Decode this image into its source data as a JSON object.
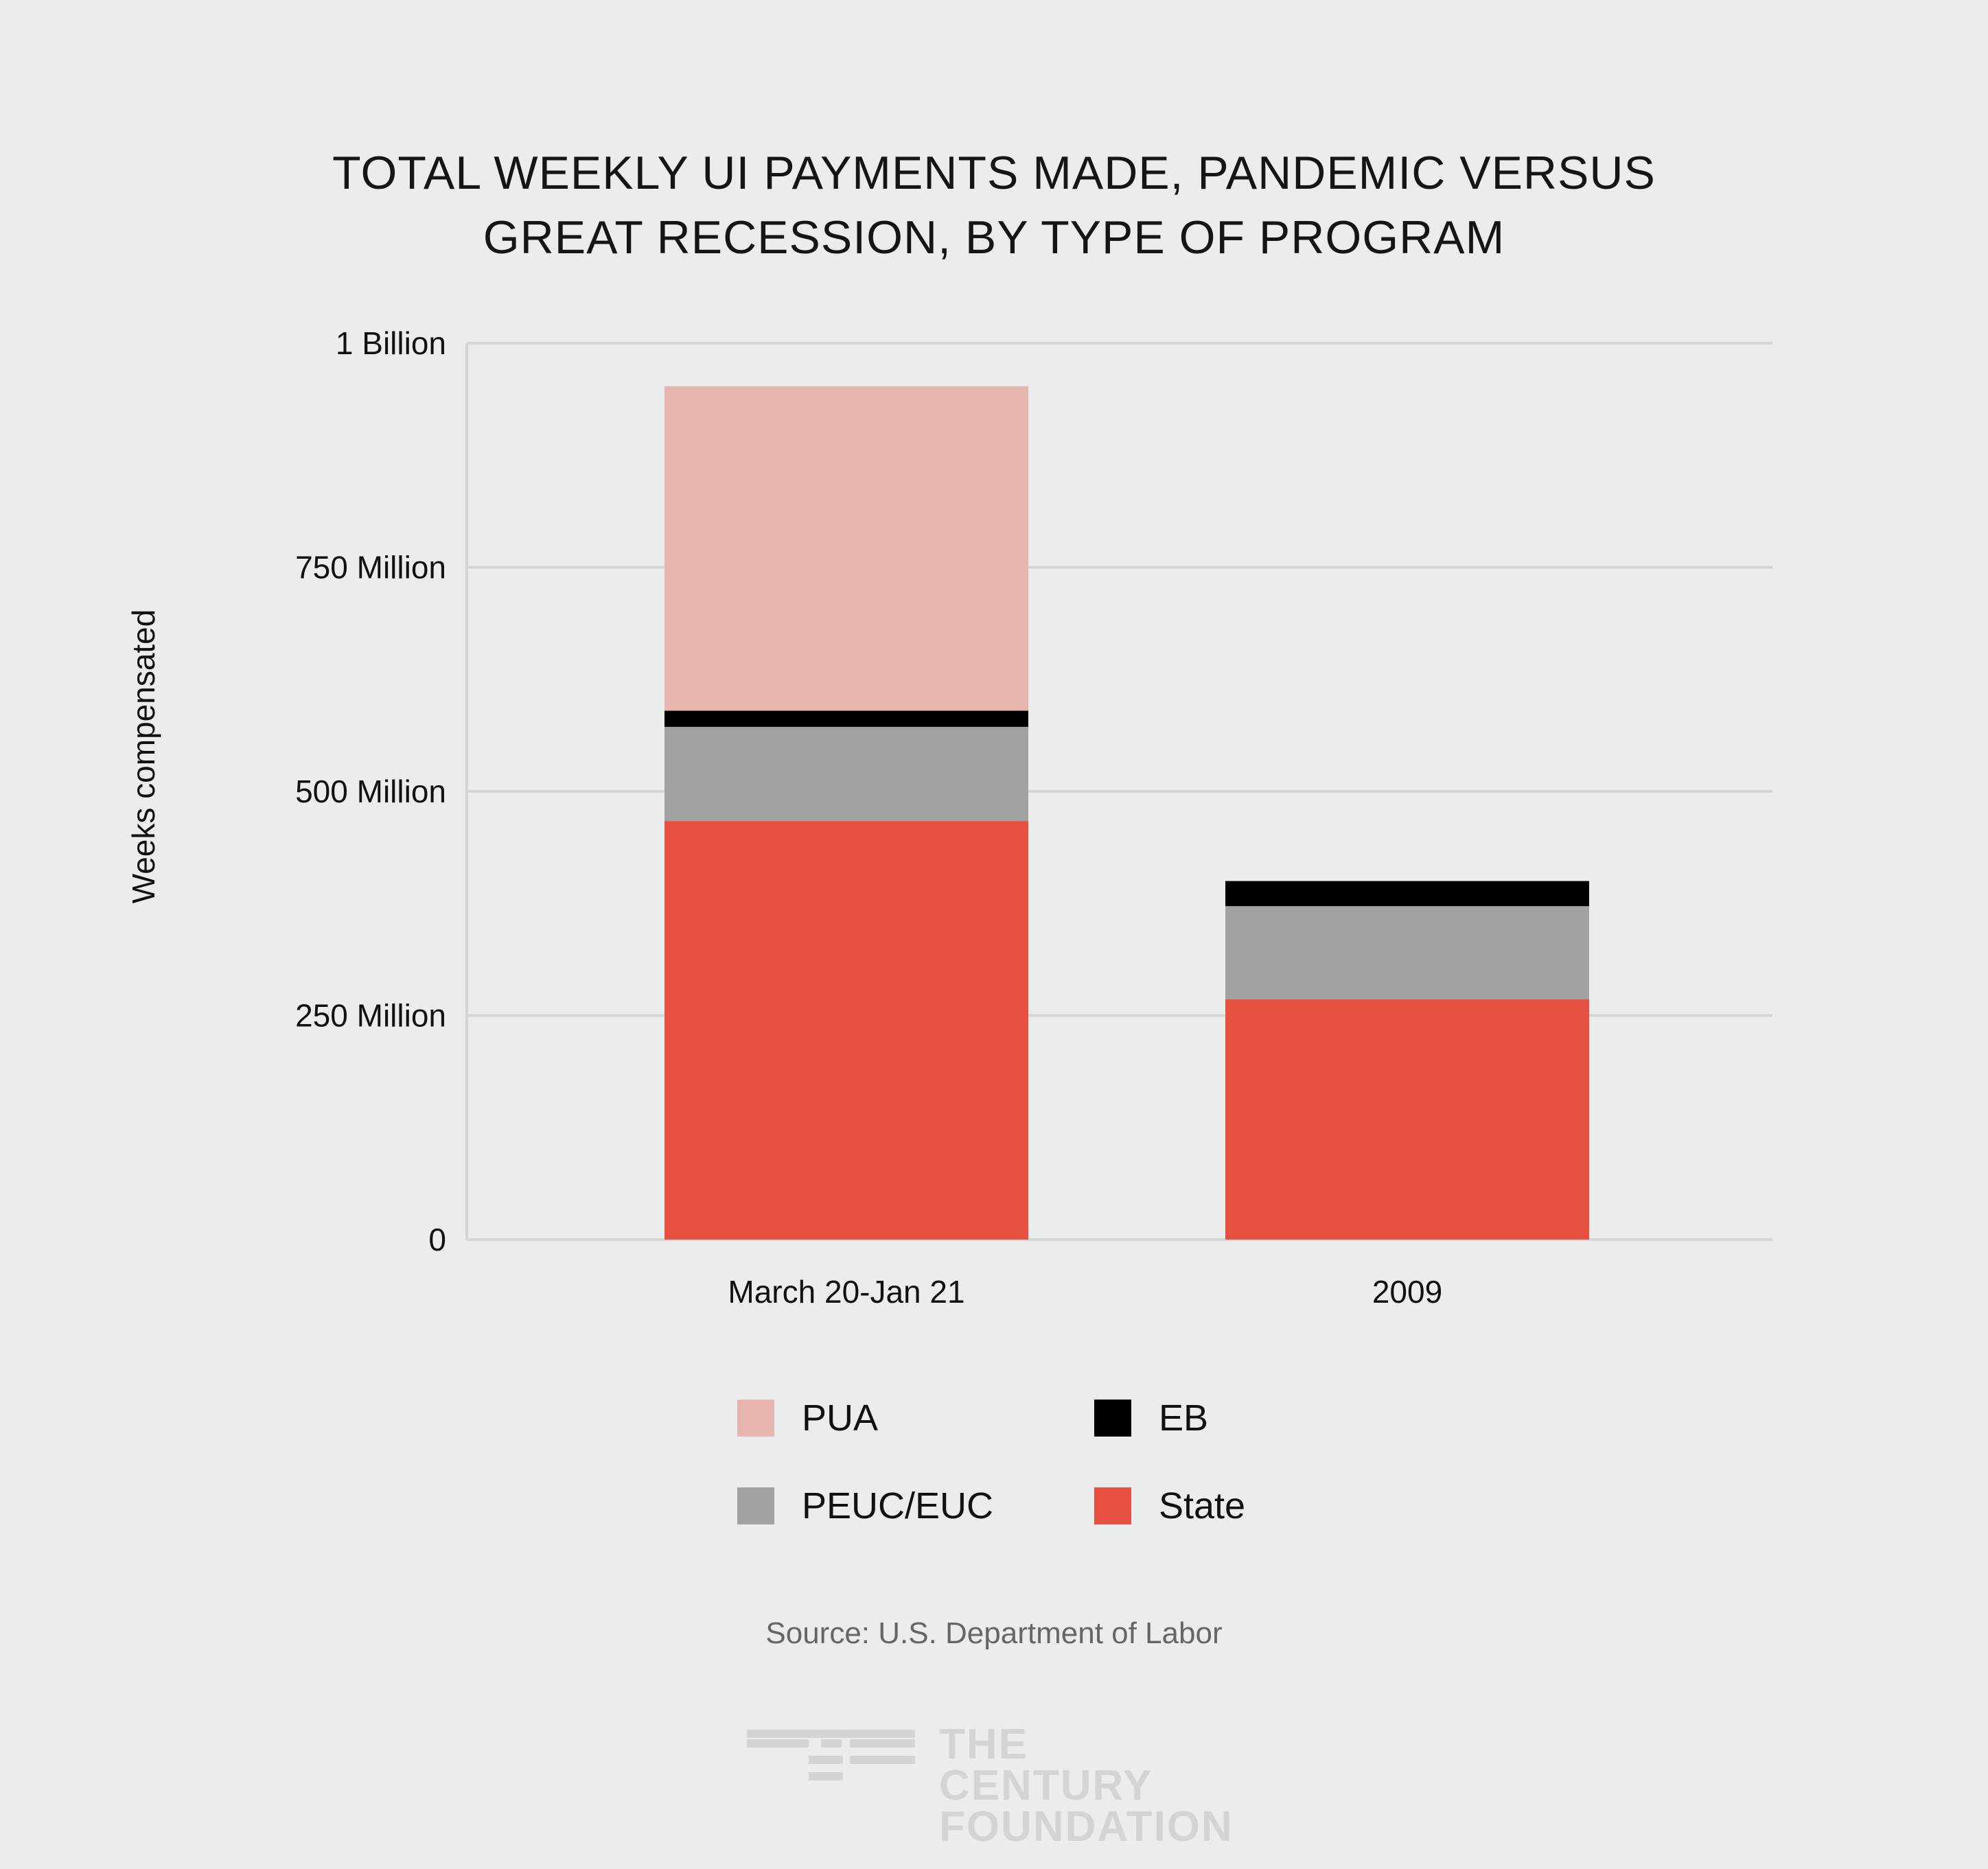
{
  "title": {
    "line1": "TOTAL WEEKLY UI PAYMENTS MADE, PANDEMIC VERSUS",
    "line2": "GREAT RECESSION, BY TYPE OF PROGRAM"
  },
  "chart_data": {
    "type": "bar",
    "stacked": true,
    "title": "TOTAL WEEKLY UI PAYMENTS MADE, PANDEMIC VERSUS GREAT RECESSION, BY TYPE OF PROGRAM",
    "xlabel": "",
    "ylabel": "Weeks compensated",
    "categories": [
      "March 20-Jan 21",
      "2009"
    ],
    "ylim": [
      0,
      1000000000
    ],
    "yticks": [
      0,
      250000000,
      500000000,
      750000000,
      1000000000
    ],
    "ytick_labels": [
      "0",
      "250 Million",
      "500 Million",
      "750 Million",
      "1 Billion"
    ],
    "grid": true,
    "legend_position": "bottom",
    "series": [
      {
        "name": "State",
        "color": "#e85142",
        "values": [
          467000000,
          268000000
        ]
      },
      {
        "name": "PEUC/EUC",
        "color": "#a2a2a2",
        "values": [
          105000000,
          104000000
        ]
      },
      {
        "name": "EB",
        "color": "#000000",
        "values": [
          18000000,
          28000000
        ]
      },
      {
        "name": "PUA",
        "color": "#e7b5b0",
        "values": [
          362000000,
          0
        ]
      }
    ]
  },
  "legend": [
    {
      "label": "PUA",
      "color": "#e7b5b0"
    },
    {
      "label": "EB",
      "color": "#000000"
    },
    {
      "label": "PEUC/EUC",
      "color": "#a2a2a2"
    },
    {
      "label": "State",
      "color": "#e85142"
    }
  ],
  "source": "Source: U.S. Department of Labor",
  "logo": {
    "line1": "THE CENTURY",
    "line2": "FOUNDATION"
  }
}
